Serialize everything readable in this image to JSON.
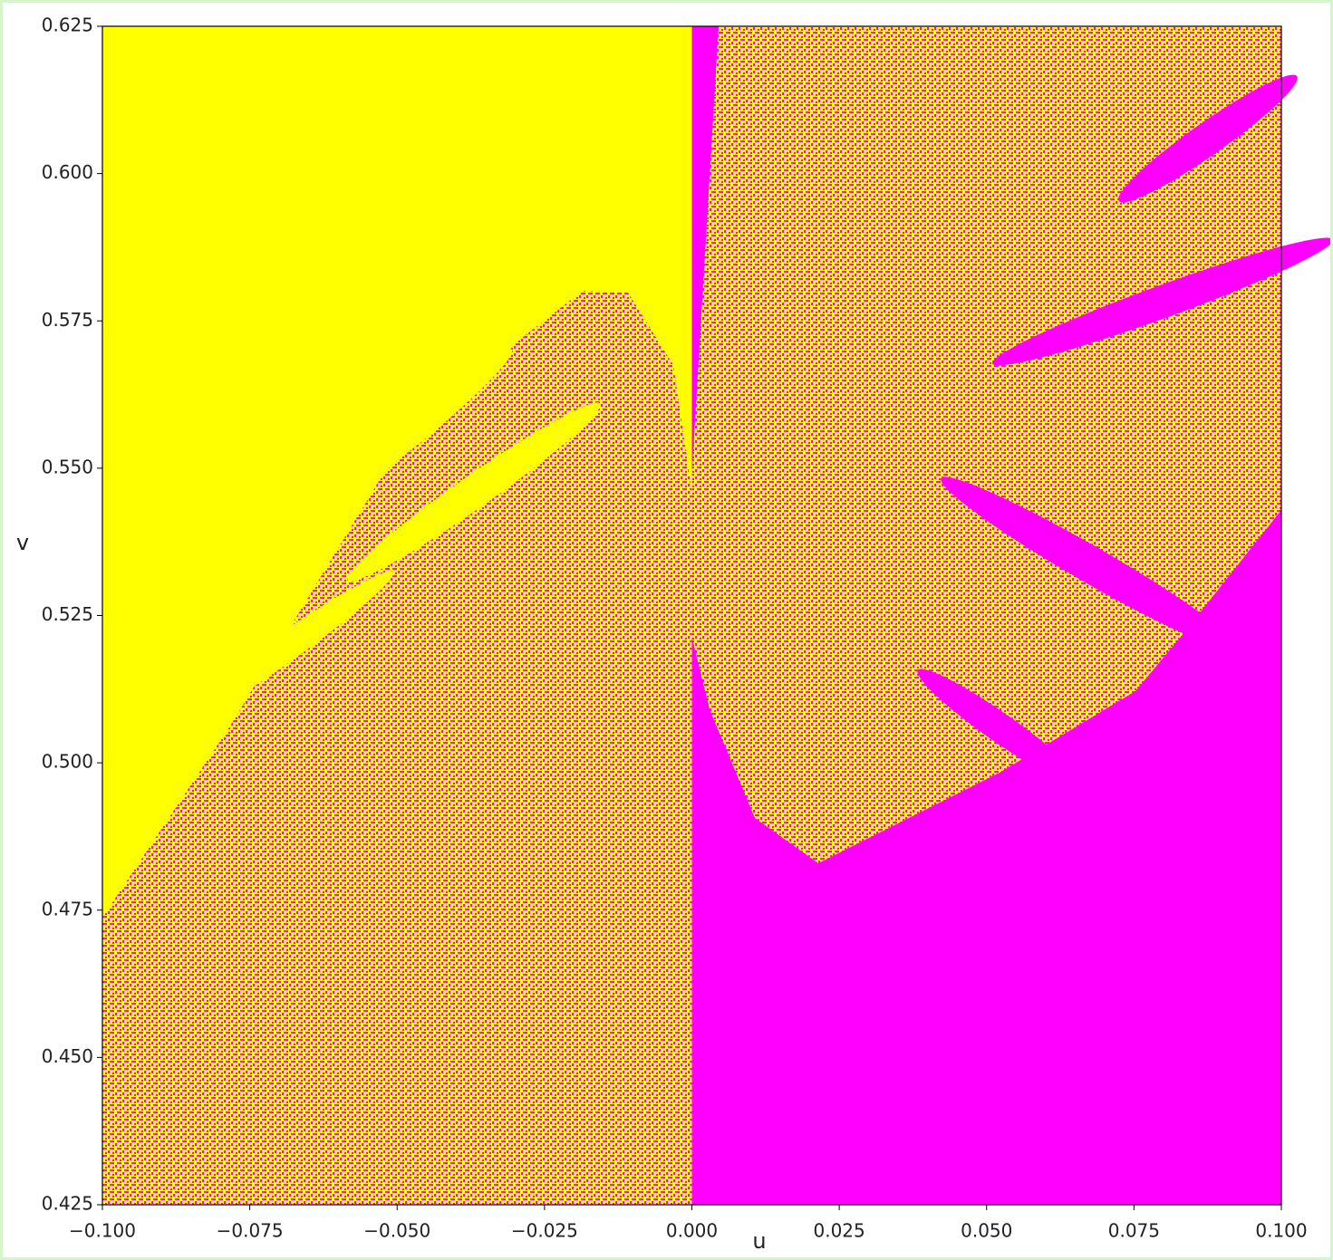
{
  "chart_data": {
    "type": "image",
    "x_label": "u",
    "y_label": "v",
    "colors": [
      "#ffff00",
      "#ff00ff"
    ],
    "xlim": [
      -0.1,
      0.1
    ],
    "ylim": [
      0.425,
      0.625
    ],
    "xticks": [
      {
        "value": -0.1,
        "label": "−0.100"
      },
      {
        "value": -0.075,
        "label": "−0.075"
      },
      {
        "value": -0.05,
        "label": "−0.050"
      },
      {
        "value": -0.025,
        "label": "−0.025"
      },
      {
        "value": 0,
        "label": "0.000"
      },
      0.025,
      {
        "value": 0.05,
        "label": "0.050"
      },
      0.075,
      {
        "value": 0.1,
        "label": "0.100"
      }
    ],
    "yticks": [
      0.425,
      {
        "value": 0.45,
        "label": "0.450"
      },
      0.475,
      {
        "value": 0.5,
        "label": "0.500"
      },
      0.525,
      {
        "value": 0.55,
        "label": "0.550"
      },
      0.575,
      {
        "value": 0.6,
        "label": "0.600"
      },
      0.625
    ]
  }
}
